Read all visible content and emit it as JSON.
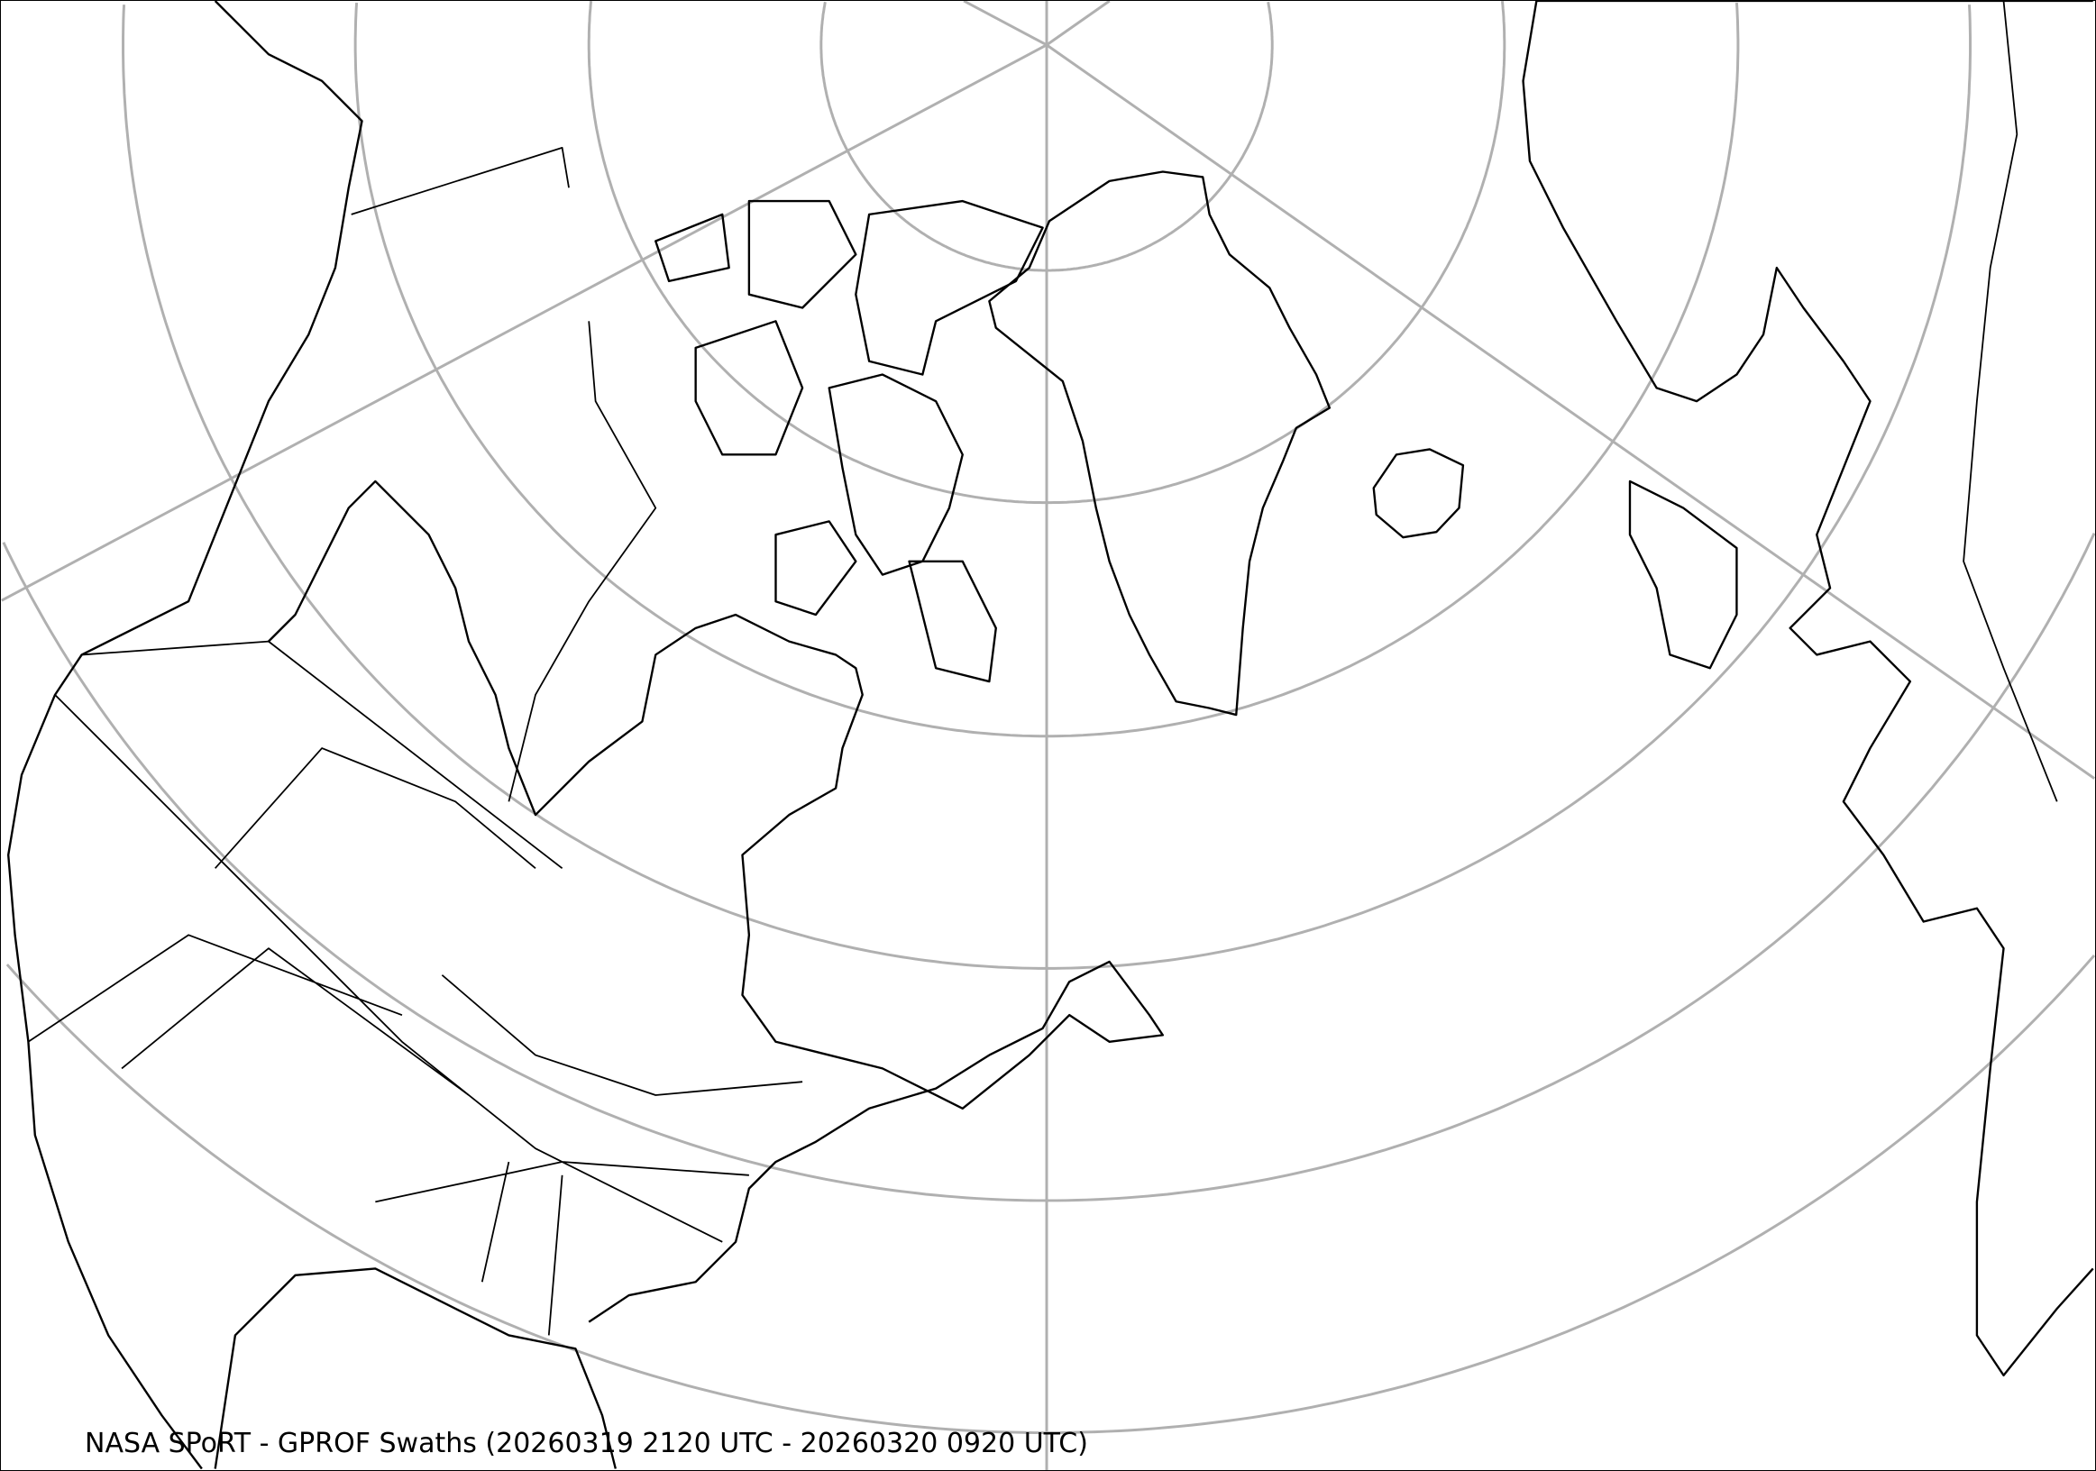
{
  "caption": "NASA SPoRT - GPROF Swaths (20260319 2120 UTC - 20260320 0920 UTC)",
  "colors": {
    "graticule": "#b0b0b0",
    "coastline": "#000000",
    "background": "#ffffff"
  },
  "map": {
    "projection": "polar-centered conic view of North Atlantic / North America",
    "graticule": true
  }
}
